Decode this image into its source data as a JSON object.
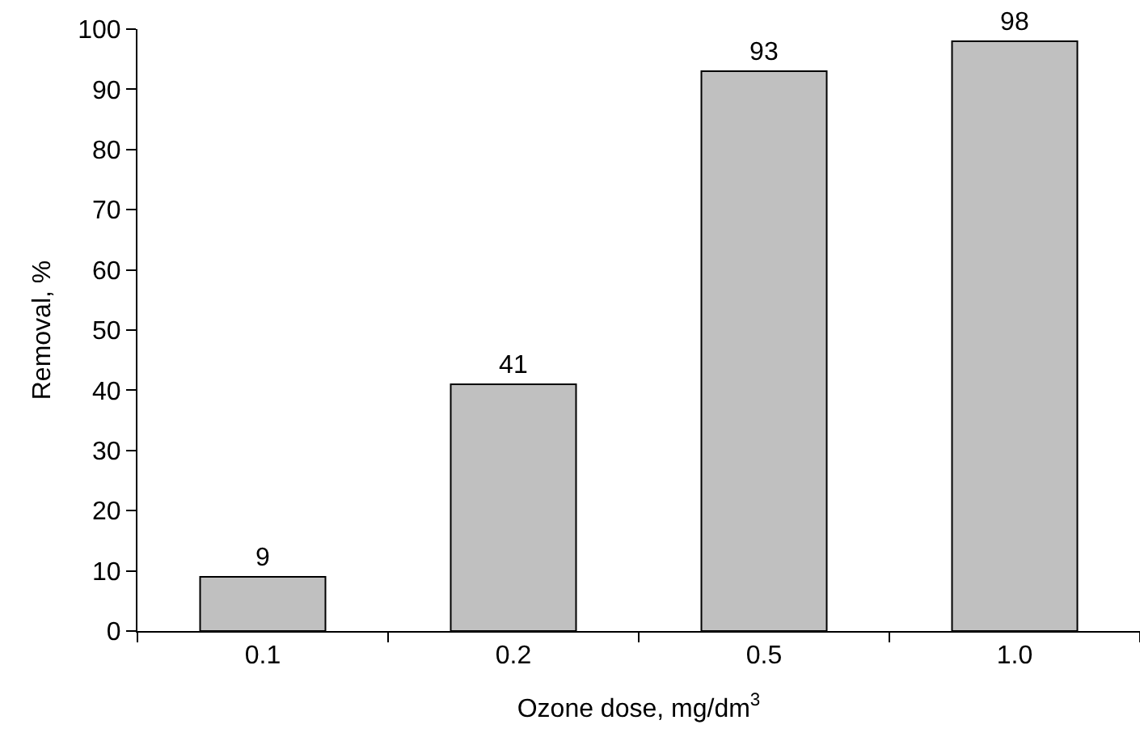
{
  "chart_data": {
    "type": "bar",
    "xlabel": "Ozone dose, mg/dm$^{3}$",
    "ylabel": "Removal, %",
    "categories": [
      "0.1",
      "0.2",
      "0.5",
      "1.0"
    ],
    "values": [
      9,
      41,
      93,
      98
    ],
    "color": "#c0c0c0",
    "ylim": [
      0,
      100
    ],
    "yticks": [
      0,
      10,
      20,
      30,
      40,
      50,
      60,
      70,
      80,
      90,
      100
    ],
    "data_labels": true,
    "legend": false,
    "grid": false
  }
}
